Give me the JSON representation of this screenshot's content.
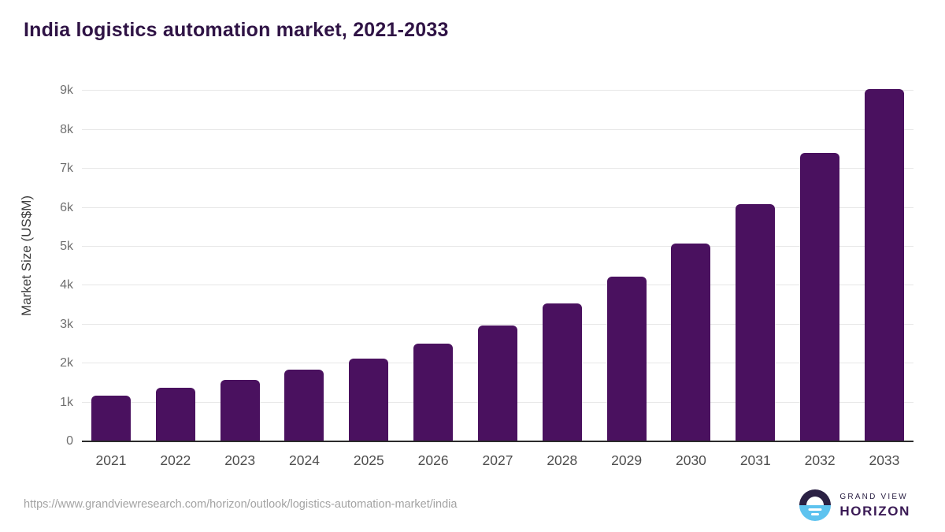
{
  "chart_data": {
    "type": "bar",
    "title": "India logistics automation market, 2021-2033",
    "categories": [
      "2021",
      "2022",
      "2023",
      "2024",
      "2025",
      "2026",
      "2027",
      "2028",
      "2029",
      "2030",
      "2031",
      "2032",
      "2033"
    ],
    "values": [
      1180,
      1370,
      1580,
      1840,
      2130,
      2510,
      2980,
      3540,
      4230,
      5080,
      6100,
      7420,
      9050
    ],
    "xlabel": "",
    "ylabel": "Market Size (US$M)",
    "y_ticks": [
      "0",
      "1k",
      "2k",
      "3k",
      "4k",
      "5k",
      "6k",
      "7k",
      "8k",
      "9k"
    ],
    "y_tick_interval": 1000,
    "ylim": [
      0,
      9550
    ],
    "grid": "horizontal-only",
    "legend": "none",
    "bar_color": "#4a115f"
  },
  "colors": {
    "title_text": "#2f1345",
    "bar_fill": "#4a115f",
    "gridline": "#e7e7e7",
    "axis_line": "#2b2b2b",
    "y_tick_text": "#6f6f6f",
    "x_tick_text": "#4e4e4e",
    "source_text": "#a3a3a3",
    "logo_navy": "#2b2144",
    "logo_blue": "#5ec3ef",
    "logo_purple": "#3a1a55"
  },
  "footer": {
    "source_url": "https://www.grandviewresearch.com/horizon/outlook/logistics-automation-market/india",
    "logo": {
      "line1": "GRAND VIEW",
      "line2": "HORIZON",
      "mark": "sunrise-horizon-icon"
    }
  }
}
